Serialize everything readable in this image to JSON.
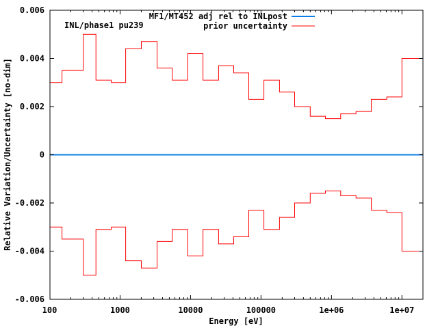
{
  "chart_data": {
    "type": "line",
    "step": true,
    "xscale": "log",
    "xlabel": "Energy [eV]",
    "ylabel": "Relative Variation/Uncertainty [no-dim]",
    "annotation": "INL/phase1 pu239",
    "xlim": [
      100,
      20000000
    ],
    "ylim": [
      -0.006,
      0.006
    ],
    "grid": false,
    "legend_position": "top-right",
    "x_ticks": [
      {
        "value": 100,
        "label": "100"
      },
      {
        "value": 1000,
        "label": "1000"
      },
      {
        "value": 10000,
        "label": "10000"
      },
      {
        "value": 100000,
        "label": "100000"
      },
      {
        "value": 1000000,
        "label": "1e+06"
      },
      {
        "value": 10000000,
        "label": "1e+07"
      }
    ],
    "y_ticks": [
      {
        "value": 0.006,
        "label": "0.006"
      },
      {
        "value": 0.004,
        "label": "0.004"
      },
      {
        "value": 0.002,
        "label": "0.002"
      },
      {
        "value": 0,
        "label": "0"
      },
      {
        "value": -0.002,
        "label": "-0.002"
      },
      {
        "value": -0.004,
        "label": "-0.004"
      },
      {
        "value": -0.006,
        "label": "-0.006"
      }
    ],
    "group_bounds": [
      100,
      150,
      300,
      455,
      750,
      1200,
      2000,
      3350,
      5500,
      9100,
      15000,
      25000,
      41000,
      67000,
      110000,
      183000,
      300000,
      500000,
      820000,
      1350000,
      2230000,
      3680000,
      6100000,
      10000000,
      20000000
    ],
    "series": [
      {
        "name": "MF1/MT452 adj rel to INLpost",
        "color": "#0a7ee8",
        "values": [
          0,
          0,
          0,
          0,
          0,
          0,
          0,
          0,
          0,
          0,
          0,
          0,
          0,
          0,
          0,
          0,
          0,
          0,
          0,
          0,
          0,
          0,
          0,
          0
        ]
      },
      {
        "name": "prior uncertainty",
        "color": "#ff0000",
        "symmetric": true,
        "values": [
          0.003,
          0.0035,
          0.005,
          0.0031,
          0.003,
          0.0044,
          0.0047,
          0.0036,
          0.0031,
          0.0042,
          0.0031,
          0.0037,
          0.0034,
          0.0023,
          0.0031,
          0.0026,
          0.002,
          0.0016,
          0.0015,
          0.0017,
          0.0018,
          0.0023,
          0.0024,
          0.004
        ]
      }
    ]
  }
}
